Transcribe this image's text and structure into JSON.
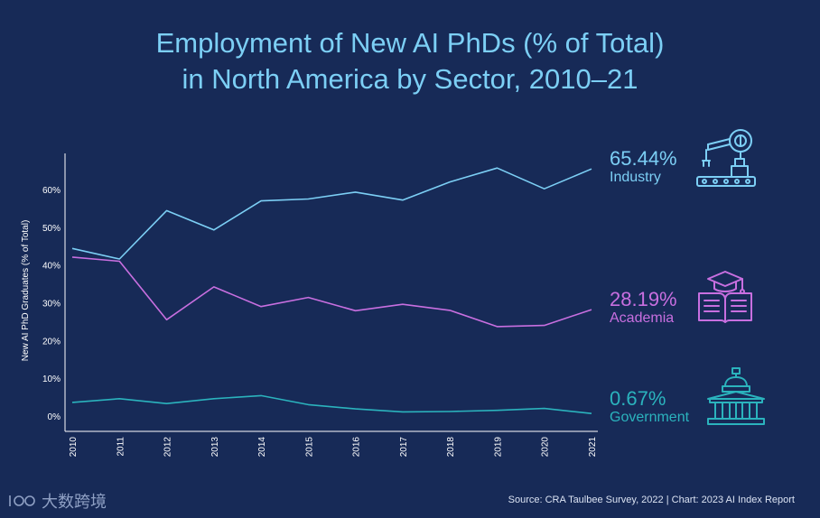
{
  "title_line1": "Employment of New AI PhDs (% of Total)",
  "title_line2": "in North America by Sector, 2010–21",
  "source": "Source: CRA Taulbee Survey, 2022 | Chart: 2023 AI Index Report",
  "watermark": "大数跨境",
  "colors": {
    "background": "#172a57",
    "industry": "#7ccff5",
    "academia": "#c86fe0",
    "government": "#2bb3bd",
    "axis": "#ffffff"
  },
  "chart_data": {
    "type": "line",
    "title": "Employment of New AI PhDs (% of Total) in North America by Sector, 2010–21",
    "xlabel": "",
    "ylabel": "New AI PhD Graduates (% of Total)",
    "ylim": [
      0,
      70
    ],
    "yticks": [
      0,
      10,
      20,
      30,
      40,
      50,
      60
    ],
    "ytick_labels": [
      "0%",
      "10%",
      "20%",
      "30%",
      "40%",
      "50%",
      "60%"
    ],
    "categories": [
      "2010",
      "2011",
      "2012",
      "2013",
      "2014",
      "2015",
      "2016",
      "2017",
      "2018",
      "2019",
      "2020",
      "2021"
    ],
    "series": [
      {
        "name": "Industry",
        "final_label": "65.44%",
        "values": [
          44.4,
          41.6,
          54.4,
          49.3,
          57.0,
          57.5,
          59.3,
          57.2,
          62.0,
          65.7,
          60.2,
          65.44
        ]
      },
      {
        "name": "Academia",
        "final_label": "28.19%",
        "values": [
          42.1,
          41.0,
          25.5,
          34.2,
          29.0,
          31.4,
          27.9,
          29.6,
          28.0,
          23.7,
          24.0,
          28.19
        ]
      },
      {
        "name": "Government",
        "final_label": "0.67%",
        "values": [
          3.6,
          4.6,
          3.3,
          4.6,
          5.4,
          3.0,
          1.9,
          1.1,
          1.2,
          1.5,
          2.0,
          0.67
        ]
      }
    ],
    "grid": false,
    "legend": "right-end labels"
  }
}
